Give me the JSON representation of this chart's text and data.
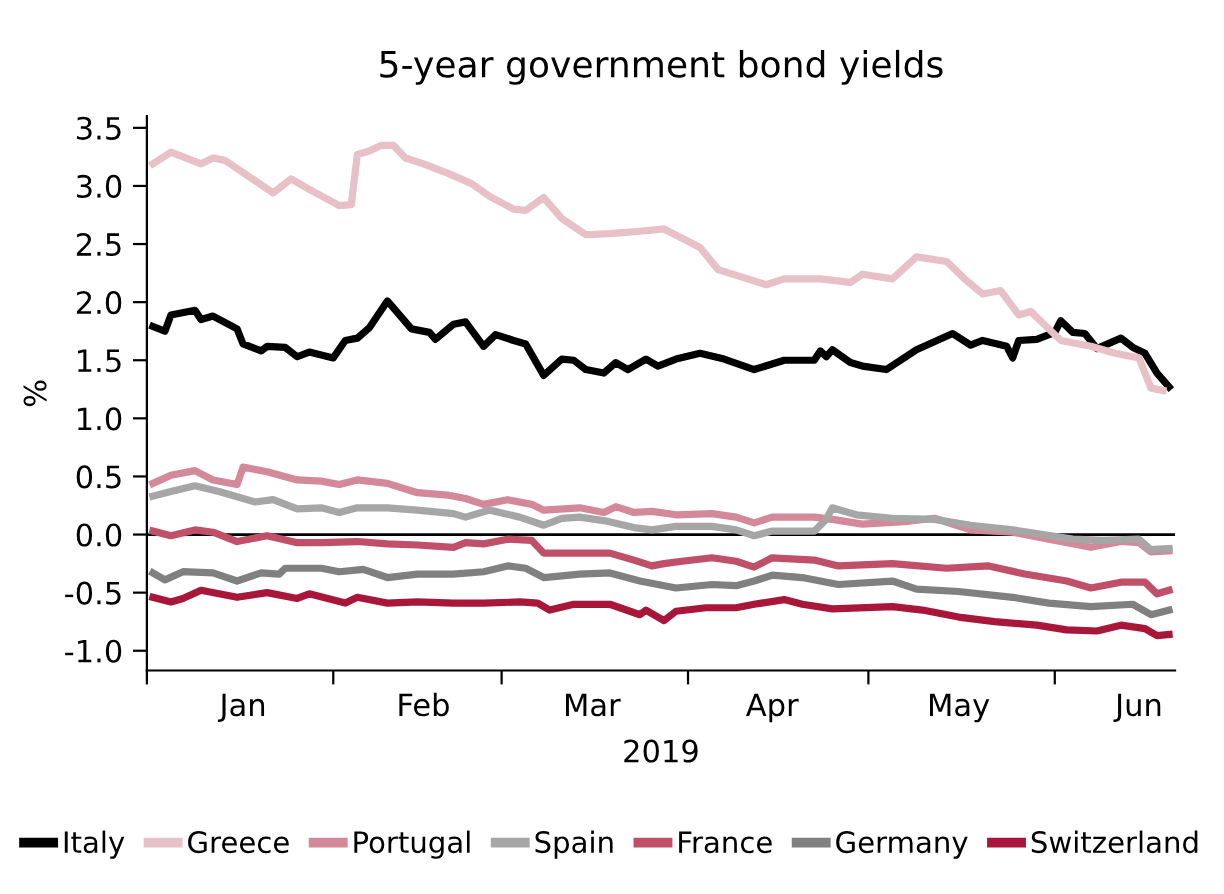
{
  "chart_data": {
    "type": "line",
    "title": "5-year government bond yields",
    "xlabel": "2019",
    "ylabel": "%",
    "xlim": [
      "2019-01-01",
      "2019-06-21"
    ],
    "xticks": [
      {
        "value": "2019-01-01",
        "label": null
      },
      {
        "value": "2019-02-01",
        "label": null
      },
      {
        "value": "2019-03-01",
        "label": null
      },
      {
        "value": "2019-04-01",
        "label": null
      },
      {
        "value": "2019-05-01",
        "label": null
      },
      {
        "value": "2019-06-01",
        "label": null
      },
      {
        "value": "2019-01-17",
        "label": "Jan"
      },
      {
        "value": "2019-02-16",
        "label": "Feb"
      },
      {
        "value": "2019-03-16",
        "label": "Mar"
      },
      {
        "value": "2019-04-15",
        "label": "Apr"
      },
      {
        "value": "2019-05-16",
        "label": "May"
      },
      {
        "value": "2019-06-15",
        "label": "Jun"
      }
    ],
    "ylim": [
      -1.17,
      3.6
    ],
    "yticks": [
      {
        "value": -1.0,
        "label": "-1.0"
      },
      {
        "value": -0.5,
        "label": "-0.5"
      },
      {
        "value": 0.0,
        "label": "0.0"
      },
      {
        "value": 0.5,
        "label": "0.5"
      },
      {
        "value": 1.0,
        "label": "1.0"
      },
      {
        "value": 1.5,
        "label": "1.5"
      },
      {
        "value": 2.0,
        "label": "2.0"
      },
      {
        "value": 2.5,
        "label": "2.5"
      },
      {
        "value": 3.0,
        "label": "3.0"
      },
      {
        "value": 3.5,
        "label": "3.5"
      }
    ],
    "ref_lines": [
      {
        "axis": "y",
        "value": 0,
        "color": "#000000"
      }
    ],
    "legend": "bottom",
    "line_style": "solid",
    "series": [
      {
        "name": "Italy",
        "color": "#000000",
        "x": [
          "2019-01-02",
          "2019-01-04",
          "2019-01-05",
          "2019-01-09",
          "2019-01-10",
          "2019-01-12",
          "2019-01-16",
          "2019-01-17",
          "2019-01-20",
          "2019-01-21",
          "2019-01-24",
          "2019-01-26",
          "2019-01-28",
          "2019-02-01",
          "2019-02-03",
          "2019-02-05",
          "2019-02-07",
          "2019-02-10",
          "2019-02-12",
          "2019-02-14",
          "2019-02-17",
          "2019-02-18",
          "2019-02-21",
          "2019-02-23",
          "2019-02-26",
          "2019-02-28",
          "2019-03-03",
          "2019-03-05",
          "2019-03-08",
          "2019-03-11",
          "2019-03-13",
          "2019-03-15",
          "2019-03-18",
          "2019-03-20",
          "2019-03-22",
          "2019-03-25",
          "2019-03-27",
          "2019-03-30",
          "2019-04-03",
          "2019-04-07",
          "2019-04-12",
          "2019-04-17",
          "2019-04-22",
          "2019-04-23",
          "2019-04-24",
          "2019-04-25",
          "2019-04-28",
          "2019-04-30",
          "2019-05-04",
          "2019-05-09",
          "2019-05-15",
          "2019-05-18",
          "2019-05-20",
          "2019-05-24",
          "2019-05-25",
          "2019-05-26",
          "2019-05-29",
          "2019-06-01",
          "2019-06-02",
          "2019-06-04",
          "2019-06-06",
          "2019-06-08",
          "2019-06-12",
          "2019-06-14",
          "2019-06-16",
          "2019-06-18",
          "2019-06-20"
        ],
        "values": [
          1.79,
          1.75,
          1.89,
          1.93,
          1.85,
          1.88,
          1.77,
          1.64,
          1.58,
          1.62,
          1.61,
          1.53,
          1.57,
          1.52,
          1.67,
          1.69,
          1.78,
          2.01,
          1.89,
          1.77,
          1.74,
          1.68,
          1.81,
          1.83,
          1.62,
          1.72,
          1.67,
          1.64,
          1.37,
          1.51,
          1.5,
          1.42,
          1.39,
          1.48,
          1.42,
          1.51,
          1.45,
          1.51,
          1.56,
          1.51,
          1.42,
          1.5,
          1.5,
          1.58,
          1.53,
          1.59,
          1.48,
          1.45,
          1.42,
          1.59,
          1.73,
          1.63,
          1.67,
          1.62,
          1.52,
          1.67,
          1.68,
          1.74,
          1.84,
          1.74,
          1.73,
          1.6,
          1.69,
          1.61,
          1.56,
          1.39,
          1.27
        ]
      },
      {
        "name": "Greece",
        "color": "#e8c0c8",
        "x": [
          "2019-01-02",
          "2019-01-05",
          "2019-01-10",
          "2019-01-12",
          "2019-01-14",
          "2019-01-22",
          "2019-01-25",
          "2019-01-28",
          "2019-02-02",
          "2019-02-04",
          "2019-02-05",
          "2019-02-07",
          "2019-02-09",
          "2019-02-11",
          "2019-02-13",
          "2019-02-16",
          "2019-02-20",
          "2019-02-24",
          "2019-02-27",
          "2019-03-03",
          "2019-03-05",
          "2019-03-08",
          "2019-03-11",
          "2019-03-15",
          "2019-03-19",
          "2019-03-24",
          "2019-03-28",
          "2019-04-03",
          "2019-04-06",
          "2019-04-14",
          "2019-04-17",
          "2019-04-23",
          "2019-04-28",
          "2019-04-30",
          "2019-05-05",
          "2019-05-09",
          "2019-05-14",
          "2019-05-17",
          "2019-05-20",
          "2019-05-23",
          "2019-05-26",
          "2019-05-28",
          "2019-06-02",
          "2019-06-07",
          "2019-06-11",
          "2019-06-15",
          "2019-06-17",
          "2019-06-19"
        ],
        "values": [
          3.19,
          3.29,
          3.19,
          3.24,
          3.22,
          2.94,
          3.06,
          2.97,
          2.83,
          2.84,
          3.27,
          3.3,
          3.35,
          3.35,
          3.24,
          3.19,
          3.11,
          3.02,
          2.91,
          2.8,
          2.79,
          2.9,
          2.72,
          2.58,
          2.59,
          2.61,
          2.63,
          2.47,
          2.28,
          2.15,
          2.2,
          2.2,
          2.17,
          2.24,
          2.2,
          2.39,
          2.35,
          2.2,
          2.07,
          2.1,
          1.89,
          1.92,
          1.67,
          1.62,
          1.56,
          1.52,
          1.26,
          1.24
        ]
      },
      {
        "name": "Portugal",
        "color": "#d4899a",
        "x": [
          "2019-01-02",
          "2019-01-05",
          "2019-01-09",
          "2019-01-12",
          "2019-01-16",
          "2019-01-17",
          "2019-01-21",
          "2019-01-26",
          "2019-01-30",
          "2019-02-02",
          "2019-02-05",
          "2019-02-10",
          "2019-02-15",
          "2019-02-20",
          "2019-02-23",
          "2019-02-26",
          "2019-03-02",
          "2019-03-06",
          "2019-03-08",
          "2019-03-14",
          "2019-03-18",
          "2019-03-20",
          "2019-03-23",
          "2019-03-26",
          "2019-03-30",
          "2019-04-05",
          "2019-04-09",
          "2019-04-12",
          "2019-04-15",
          "2019-04-22",
          "2019-04-25",
          "2019-04-30",
          "2019-05-07",
          "2019-05-12",
          "2019-05-18",
          "2019-05-25",
          "2019-05-31",
          "2019-06-07",
          "2019-06-12",
          "2019-06-15",
          "2019-06-17",
          "2019-06-20"
        ],
        "values": [
          0.44,
          0.51,
          0.55,
          0.47,
          0.43,
          0.58,
          0.54,
          0.47,
          0.46,
          0.43,
          0.47,
          0.44,
          0.36,
          0.34,
          0.31,
          0.26,
          0.3,
          0.26,
          0.21,
          0.23,
          0.19,
          0.24,
          0.19,
          0.2,
          0.17,
          0.18,
          0.15,
          0.1,
          0.15,
          0.15,
          0.13,
          0.09,
          0.11,
          0.14,
          0.04,
          0.02,
          -0.04,
          -0.11,
          -0.06,
          -0.07,
          -0.15,
          -0.14
        ]
      },
      {
        "name": "Spain",
        "color": "#a6a6a6",
        "x": [
          "2019-01-02",
          "2019-01-05",
          "2019-01-09",
          "2019-01-13",
          "2019-01-19",
          "2019-01-22",
          "2019-01-26",
          "2019-01-30",
          "2019-02-02",
          "2019-02-05",
          "2019-02-10",
          "2019-02-15",
          "2019-02-21",
          "2019-02-23",
          "2019-02-27",
          "2019-03-04",
          "2019-03-08",
          "2019-03-11",
          "2019-03-14",
          "2019-03-18",
          "2019-03-23",
          "2019-03-26",
          "2019-03-30",
          "2019-04-05",
          "2019-04-09",
          "2019-04-12",
          "2019-04-15",
          "2019-04-22",
          "2019-04-24",
          "2019-04-25",
          "2019-04-29",
          "2019-05-05",
          "2019-05-12",
          "2019-05-18",
          "2019-05-25",
          "2019-05-30",
          "2019-06-04",
          "2019-06-09",
          "2019-06-15",
          "2019-06-17",
          "2019-06-20"
        ],
        "values": [
          0.33,
          0.37,
          0.42,
          0.37,
          0.28,
          0.3,
          0.22,
          0.23,
          0.19,
          0.23,
          0.23,
          0.21,
          0.18,
          0.15,
          0.21,
          0.15,
          0.08,
          0.14,
          0.15,
          0.12,
          0.06,
          0.04,
          0.07,
          0.07,
          0.04,
          -0.01,
          0.03,
          0.03,
          0.13,
          0.23,
          0.17,
          0.14,
          0.13,
          0.08,
          0.04,
          0.0,
          -0.04,
          -0.05,
          -0.04,
          -0.13,
          -0.12
        ]
      },
      {
        "name": "France",
        "color": "#c0506a",
        "x": [
          "2019-01-02",
          "2019-01-05",
          "2019-01-09",
          "2019-01-12",
          "2019-01-16",
          "2019-01-21",
          "2019-01-26",
          "2019-01-30",
          "2019-02-05",
          "2019-02-10",
          "2019-02-15",
          "2019-02-21",
          "2019-02-23",
          "2019-02-26",
          "2019-03-02",
          "2019-03-06",
          "2019-03-08",
          "2019-03-14",
          "2019-03-19",
          "2019-03-23",
          "2019-03-26",
          "2019-03-28",
          "2019-03-31",
          "2019-04-05",
          "2019-04-09",
          "2019-04-12",
          "2019-04-15",
          "2019-04-22",
          "2019-04-26",
          "2019-05-05",
          "2019-05-14",
          "2019-05-21",
          "2019-05-27",
          "2019-06-03",
          "2019-06-07",
          "2019-06-12",
          "2019-06-16",
          "2019-06-18",
          "2019-06-20"
        ],
        "values": [
          0.03,
          -0.01,
          0.04,
          0.02,
          -0.06,
          -0.01,
          -0.07,
          -0.07,
          -0.06,
          -0.08,
          -0.09,
          -0.11,
          -0.07,
          -0.08,
          -0.04,
          -0.05,
          -0.16,
          -0.16,
          -0.16,
          -0.22,
          -0.27,
          -0.25,
          -0.23,
          -0.2,
          -0.23,
          -0.28,
          -0.2,
          -0.22,
          -0.27,
          -0.25,
          -0.29,
          -0.27,
          -0.34,
          -0.4,
          -0.46,
          -0.41,
          -0.41,
          -0.51,
          -0.48
        ]
      },
      {
        "name": "Germany",
        "color": "#808080",
        "x": [
          "2019-01-02",
          "2019-01-04",
          "2019-01-07",
          "2019-01-12",
          "2019-01-16",
          "2019-01-20",
          "2019-01-23",
          "2019-01-24",
          "2019-01-30",
          "2019-02-02",
          "2019-02-06",
          "2019-02-10",
          "2019-02-15",
          "2019-02-21",
          "2019-02-26",
          "2019-03-02",
          "2019-03-05",
          "2019-03-08",
          "2019-03-14",
          "2019-03-19",
          "2019-03-24",
          "2019-03-27",
          "2019-03-30",
          "2019-04-05",
          "2019-04-09",
          "2019-04-12",
          "2019-04-15",
          "2019-04-20",
          "2019-04-26",
          "2019-05-05",
          "2019-05-09",
          "2019-05-16",
          "2019-05-25",
          "2019-05-31",
          "2019-06-07",
          "2019-06-14",
          "2019-06-17",
          "2019-06-20"
        ],
        "values": [
          -0.33,
          -0.39,
          -0.32,
          -0.33,
          -0.4,
          -0.33,
          -0.34,
          -0.29,
          -0.29,
          -0.32,
          -0.3,
          -0.37,
          -0.34,
          -0.34,
          -0.32,
          -0.27,
          -0.29,
          -0.37,
          -0.34,
          -0.33,
          -0.4,
          -0.43,
          -0.46,
          -0.43,
          -0.44,
          -0.4,
          -0.35,
          -0.37,
          -0.43,
          -0.4,
          -0.47,
          -0.49,
          -0.54,
          -0.59,
          -0.62,
          -0.6,
          -0.69,
          -0.65
        ]
      },
      {
        "name": "Switzerland",
        "color": "#a8163a",
        "x": [
          "2019-01-02",
          "2019-01-05",
          "2019-01-07",
          "2019-01-10",
          "2019-01-16",
          "2019-01-21",
          "2019-01-26",
          "2019-01-28",
          "2019-02-03",
          "2019-02-05",
          "2019-02-10",
          "2019-02-15",
          "2019-02-21",
          "2019-02-26",
          "2019-03-04",
          "2019-03-07",
          "2019-03-09",
          "2019-03-13",
          "2019-03-19",
          "2019-03-24",
          "2019-03-25",
          "2019-03-28",
          "2019-03-30",
          "2019-04-04",
          "2019-04-09",
          "2019-04-12",
          "2019-04-17",
          "2019-04-20",
          "2019-04-25",
          "2019-05-05",
          "2019-05-10",
          "2019-05-16",
          "2019-05-22",
          "2019-05-29",
          "2019-06-03",
          "2019-06-08",
          "2019-06-12",
          "2019-06-16",
          "2019-06-18",
          "2019-06-20"
        ],
        "values": [
          -0.54,
          -0.58,
          -0.55,
          -0.48,
          -0.54,
          -0.5,
          -0.55,
          -0.51,
          -0.59,
          -0.54,
          -0.59,
          -0.58,
          -0.59,
          -0.59,
          -0.58,
          -0.59,
          -0.65,
          -0.6,
          -0.6,
          -0.69,
          -0.65,
          -0.74,
          -0.66,
          -0.63,
          -0.63,
          -0.6,
          -0.56,
          -0.6,
          -0.64,
          -0.62,
          -0.65,
          -0.71,
          -0.75,
          -0.78,
          -0.82,
          -0.83,
          -0.78,
          -0.81,
          -0.87,
          -0.86
        ]
      }
    ]
  }
}
